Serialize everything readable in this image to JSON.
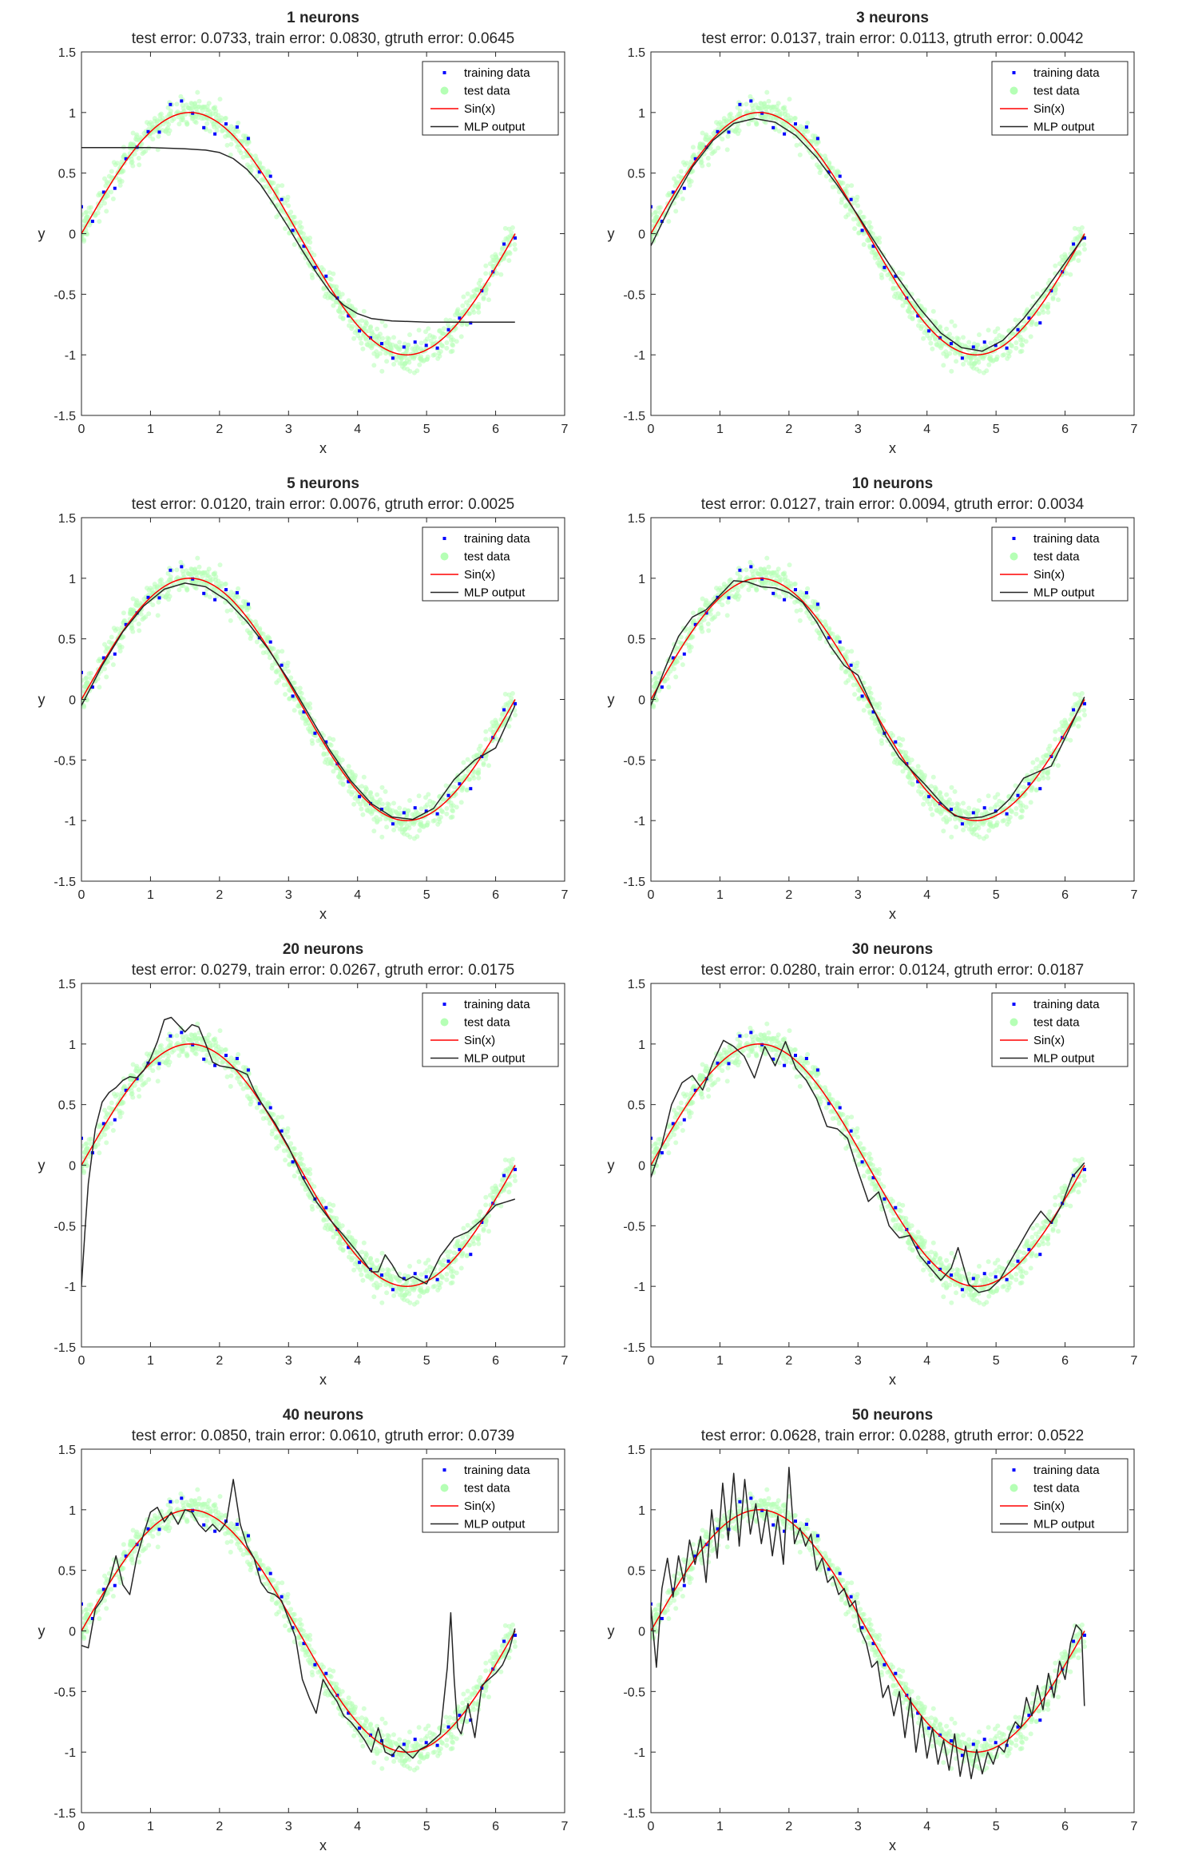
{
  "figure": {
    "xlabel": "x",
    "ylabel": "y",
    "x_ticks": [
      "0",
      "1",
      "2",
      "3",
      "4",
      "5",
      "6",
      "7"
    ],
    "y_ticks": [
      "-1.5",
      "-1",
      "-0.5",
      "0",
      "0.5",
      "1",
      "1.5"
    ],
    "legend_labels": [
      "training data",
      "test data",
      "Sin(x)",
      "MLP output"
    ],
    "colors": {
      "training": "#0000ff",
      "test": "#b5ffb5",
      "sin": "#ff0000",
      "mlp": "#262626",
      "axes": "#262626"
    }
  },
  "chart_data": [
    {
      "type": "line",
      "title": "1 neurons",
      "subtitle": "test error: 0.0733, train error: 0.0830, gtruth error: 0.0645",
      "xlabel": "x",
      "ylabel": "y",
      "xlim": [
        0,
        7
      ],
      "ylim": [
        -1.5,
        1.5
      ],
      "grid": false,
      "legend_position": "top-right",
      "mlp_x": [
        0,
        0.5,
        1.0,
        1.5,
        1.8,
        2.0,
        2.2,
        2.4,
        2.6,
        2.8,
        3.0,
        3.2,
        3.4,
        3.6,
        3.8,
        4.0,
        4.2,
        4.5,
        5.0,
        5.5,
        6.0,
        6.28
      ],
      "mlp_y": [
        0.71,
        0.71,
        0.71,
        0.7,
        0.69,
        0.67,
        0.62,
        0.53,
        0.4,
        0.23,
        0.05,
        -0.14,
        -0.32,
        -0.48,
        -0.59,
        -0.66,
        -0.7,
        -0.72,
        -0.73,
        -0.73,
        -0.73,
        -0.73
      ]
    },
    {
      "type": "line",
      "title": "3 neurons",
      "subtitle": "test error: 0.0137, train error: 0.0113, gtruth error: 0.0042",
      "xlabel": "x",
      "ylabel": "y",
      "xlim": [
        0,
        7
      ],
      "ylim": [
        -1.5,
        1.5
      ],
      "grid": false,
      "legend_position": "top-right",
      "mlp_x": [
        0,
        0.3,
        0.6,
        0.9,
        1.2,
        1.5,
        1.8,
        2.1,
        2.4,
        2.7,
        3.0,
        3.3,
        3.6,
        3.9,
        4.2,
        4.5,
        4.8,
        5.1,
        5.4,
        5.7,
        6.0,
        6.28
      ],
      "mlp_y": [
        -0.1,
        0.25,
        0.55,
        0.77,
        0.91,
        0.95,
        0.92,
        0.81,
        0.63,
        0.4,
        0.15,
        -0.12,
        -0.38,
        -0.62,
        -0.82,
        -0.94,
        -0.97,
        -0.88,
        -0.7,
        -0.48,
        -0.24,
        -0.02
      ]
    },
    {
      "type": "line",
      "title": "5 neurons",
      "subtitle": "test error: 0.0120, train error: 0.0076, gtruth error: 0.0025",
      "xlabel": "x",
      "ylabel": "y",
      "xlim": [
        0,
        7
      ],
      "ylim": [
        -1.5,
        1.5
      ],
      "grid": false,
      "legend_position": "top-right",
      "mlp_x": [
        0,
        0.3,
        0.6,
        0.9,
        1.2,
        1.5,
        1.8,
        2.1,
        2.4,
        2.7,
        3.0,
        3.3,
        3.6,
        3.9,
        4.2,
        4.5,
        4.8,
        5.1,
        5.4,
        5.7,
        6.0,
        6.28
      ],
      "mlp_y": [
        -0.05,
        0.28,
        0.56,
        0.77,
        0.91,
        0.96,
        0.93,
        0.82,
        0.64,
        0.42,
        0.16,
        -0.13,
        -0.42,
        -0.67,
        -0.86,
        -0.97,
        -0.99,
        -0.9,
        -0.66,
        -0.5,
        -0.4,
        -0.05
      ]
    },
    {
      "type": "line",
      "title": "10 neurons",
      "subtitle": "test error: 0.0127, train error: 0.0094, gtruth error: 0.0034",
      "xlabel": "x",
      "ylabel": "y",
      "xlim": [
        0,
        7
      ],
      "ylim": [
        -1.5,
        1.5
      ],
      "grid": false,
      "legend_position": "top-right",
      "mlp_x": [
        0,
        0.2,
        0.4,
        0.6,
        0.8,
        1.0,
        1.2,
        1.4,
        1.6,
        1.8,
        2.0,
        2.2,
        2.4,
        2.6,
        2.8,
        3.0,
        3.2,
        3.4,
        3.6,
        3.8,
        4.0,
        4.2,
        4.4,
        4.6,
        4.8,
        5.0,
        5.2,
        5.4,
        5.6,
        5.8,
        6.0,
        6.28
      ],
      "mlp_y": [
        -0.05,
        0.25,
        0.52,
        0.68,
        0.74,
        0.86,
        0.98,
        0.97,
        0.93,
        0.92,
        0.88,
        0.8,
        0.64,
        0.44,
        0.28,
        0.2,
        -0.05,
        -0.3,
        -0.48,
        -0.6,
        -0.72,
        -0.85,
        -0.96,
        -0.98,
        -0.97,
        -0.93,
        -0.82,
        -0.65,
        -0.6,
        -0.55,
        -0.32,
        0.02
      ]
    },
    {
      "type": "line",
      "title": "20 neurons",
      "subtitle": "test error: 0.0279, train error: 0.0267, gtruth error: 0.0175",
      "xlabel": "x",
      "ylabel": "y",
      "xlim": [
        0,
        7
      ],
      "ylim": [
        -1.5,
        1.5
      ],
      "grid": false,
      "legend_position": "top-right",
      "mlp_x": [
        0,
        0.05,
        0.1,
        0.2,
        0.3,
        0.4,
        0.5,
        0.6,
        0.7,
        0.8,
        0.9,
        1.0,
        1.1,
        1.2,
        1.3,
        1.4,
        1.5,
        1.6,
        1.7,
        1.8,
        1.9,
        2.0,
        2.2,
        2.4,
        2.5,
        2.6,
        2.8,
        3.0,
        3.2,
        3.4,
        3.6,
        3.8,
        4.0,
        4.2,
        4.3,
        4.4,
        4.5,
        4.6,
        4.7,
        4.8,
        5.0,
        5.2,
        5.4,
        5.6,
        5.8,
        6.0,
        6.28
      ],
      "mlp_y": [
        -1.0,
        -0.55,
        -0.15,
        0.3,
        0.52,
        0.6,
        0.64,
        0.7,
        0.73,
        0.72,
        0.78,
        0.88,
        1.02,
        1.2,
        1.22,
        1.16,
        1.1,
        1.16,
        1.14,
        1.0,
        0.85,
        0.82,
        0.8,
        0.75,
        0.62,
        0.52,
        0.35,
        0.15,
        -0.1,
        -0.3,
        -0.45,
        -0.58,
        -0.72,
        -0.88,
        -0.88,
        -0.74,
        -0.82,
        -0.92,
        -0.95,
        -0.92,
        -0.98,
        -0.75,
        -0.6,
        -0.55,
        -0.45,
        -0.33,
        -0.28
      ]
    },
    {
      "type": "line",
      "title": "30 neurons",
      "subtitle": "test error: 0.0280, train error: 0.0124, gtruth error: 0.0187",
      "xlabel": "x",
      "ylabel": "y",
      "xlim": [
        0,
        7
      ],
      "ylim": [
        -1.5,
        1.5
      ],
      "grid": false,
      "legend_position": "top-right",
      "mlp_x": [
        0,
        0.15,
        0.3,
        0.45,
        0.6,
        0.75,
        0.9,
        1.05,
        1.2,
        1.35,
        1.5,
        1.65,
        1.8,
        1.95,
        2.1,
        2.25,
        2.4,
        2.55,
        2.7,
        2.85,
        3.0,
        3.15,
        3.3,
        3.45,
        3.6,
        3.75,
        3.9,
        4.05,
        4.2,
        4.35,
        4.45,
        4.6,
        4.75,
        4.9,
        5.05,
        5.2,
        5.35,
        5.5,
        5.65,
        5.8,
        5.95,
        6.1,
        6.28
      ],
      "mlp_y": [
        -0.1,
        0.15,
        0.5,
        0.68,
        0.74,
        0.62,
        0.85,
        1.03,
        0.98,
        0.9,
        0.72,
        0.98,
        0.82,
        1.02,
        0.8,
        0.7,
        0.55,
        0.32,
        0.3,
        0.22,
        -0.05,
        -0.3,
        -0.22,
        -0.5,
        -0.6,
        -0.58,
        -0.75,
        -0.85,
        -0.95,
        -0.85,
        -0.68,
        -0.98,
        -1.05,
        -1.03,
        -0.95,
        -0.8,
        -0.65,
        -0.5,
        -0.38,
        -0.48,
        -0.33,
        -0.1,
        0.02
      ]
    },
    {
      "type": "line",
      "title": "40 neurons",
      "subtitle": "test error: 0.0850, train error: 0.0610, gtruth error: 0.0739",
      "xlabel": "x",
      "ylabel": "y",
      "xlim": [
        0,
        7
      ],
      "ylim": [
        -1.5,
        1.5
      ],
      "grid": false,
      "legend_position": "top-right",
      "mlp_x": [
        0,
        0.1,
        0.2,
        0.3,
        0.4,
        0.5,
        0.6,
        0.7,
        0.8,
        0.9,
        1.0,
        1.1,
        1.2,
        1.3,
        1.4,
        1.5,
        1.6,
        1.7,
        1.8,
        1.9,
        2.0,
        2.1,
        2.2,
        2.3,
        2.4,
        2.5,
        2.6,
        2.7,
        2.8,
        2.9,
        3.0,
        3.1,
        3.2,
        3.3,
        3.4,
        3.5,
        3.6,
        3.7,
        3.8,
        3.9,
        4.0,
        4.1,
        4.2,
        4.3,
        4.4,
        4.5,
        4.6,
        4.7,
        4.8,
        4.9,
        5.0,
        5.1,
        5.2,
        5.3,
        5.35,
        5.4,
        5.45,
        5.5,
        5.6,
        5.7,
        5.8,
        5.9,
        6.0,
        6.1,
        6.2,
        6.28
      ],
      "mlp_y": [
        -0.12,
        -0.14,
        0.18,
        0.26,
        0.4,
        0.62,
        0.38,
        0.3,
        0.6,
        0.8,
        0.98,
        1.02,
        0.9,
        0.98,
        0.88,
        1.0,
        0.98,
        0.88,
        0.82,
        0.88,
        0.82,
        0.9,
        1.25,
        0.88,
        0.7,
        0.6,
        0.4,
        0.32,
        0.3,
        0.25,
        0.1,
        -0.05,
        -0.4,
        -0.55,
        -0.68,
        -0.4,
        -0.5,
        -0.58,
        -0.7,
        -0.75,
        -0.82,
        -0.9,
        -1.0,
        -0.8,
        -1.0,
        -1.03,
        -0.95,
        -1.0,
        -1.05,
        -0.98,
        -0.95,
        -0.9,
        -0.85,
        -0.3,
        0.15,
        -0.4,
        -0.8,
        -0.85,
        -0.6,
        -0.88,
        -0.45,
        -0.4,
        -0.35,
        -0.28,
        -0.15,
        0.02
      ]
    },
    {
      "type": "line",
      "title": "50 neurons",
      "subtitle": "test error: 0.0628, train error: 0.0288, gtruth error: 0.0522",
      "xlabel": "x",
      "ylabel": "y",
      "xlim": [
        0,
        7
      ],
      "ylim": [
        -1.5,
        1.5
      ],
      "grid": false,
      "legend_position": "top-right",
      "mlp_x": [
        0,
        0.08,
        0.16,
        0.24,
        0.32,
        0.4,
        0.48,
        0.56,
        0.64,
        0.72,
        0.8,
        0.88,
        0.96,
        1.04,
        1.12,
        1.2,
        1.28,
        1.36,
        1.44,
        1.52,
        1.6,
        1.68,
        1.76,
        1.84,
        1.92,
        2.0,
        2.08,
        2.16,
        2.24,
        2.32,
        2.4,
        2.48,
        2.56,
        2.64,
        2.72,
        2.8,
        2.88,
        2.96,
        3.04,
        3.12,
        3.2,
        3.28,
        3.36,
        3.44,
        3.52,
        3.6,
        3.68,
        3.76,
        3.84,
        3.92,
        4.0,
        4.08,
        4.16,
        4.24,
        4.32,
        4.4,
        4.48,
        4.56,
        4.64,
        4.72,
        4.8,
        4.88,
        4.96,
        5.04,
        5.12,
        5.2,
        5.28,
        5.36,
        5.44,
        5.52,
        5.6,
        5.68,
        5.76,
        5.84,
        5.92,
        6.0,
        6.08,
        6.16,
        6.24,
        6.28
      ],
      "mlp_y": [
        0.2,
        -0.3,
        0.35,
        0.6,
        0.28,
        0.62,
        0.4,
        0.75,
        0.55,
        0.78,
        0.4,
        1.0,
        0.6,
        1.22,
        0.75,
        1.3,
        0.7,
        1.25,
        0.8,
        1.05,
        0.72,
        1.0,
        0.62,
        0.95,
        0.55,
        1.35,
        0.72,
        0.85,
        0.7,
        0.8,
        0.5,
        0.6,
        0.4,
        0.45,
        0.3,
        0.35,
        0.2,
        0.25,
        0.0,
        -0.1,
        -0.3,
        -0.25,
        -0.55,
        -0.45,
        -0.7,
        -0.5,
        -0.88,
        -0.55,
        -1.0,
        -0.7,
        -1.05,
        -0.8,
        -1.1,
        -0.9,
        -1.15,
        -0.85,
        -1.2,
        -0.95,
        -1.22,
        -0.98,
        -1.18,
        -1.0,
        -1.1,
        -0.95,
        -1.0,
        -0.85,
        -0.75,
        -0.8,
        -0.55,
        -0.7,
        -0.45,
        -0.65,
        -0.35,
        -0.55,
        -0.25,
        -0.4,
        -0.1,
        0.05,
        0.0,
        -0.62
      ]
    }
  ]
}
